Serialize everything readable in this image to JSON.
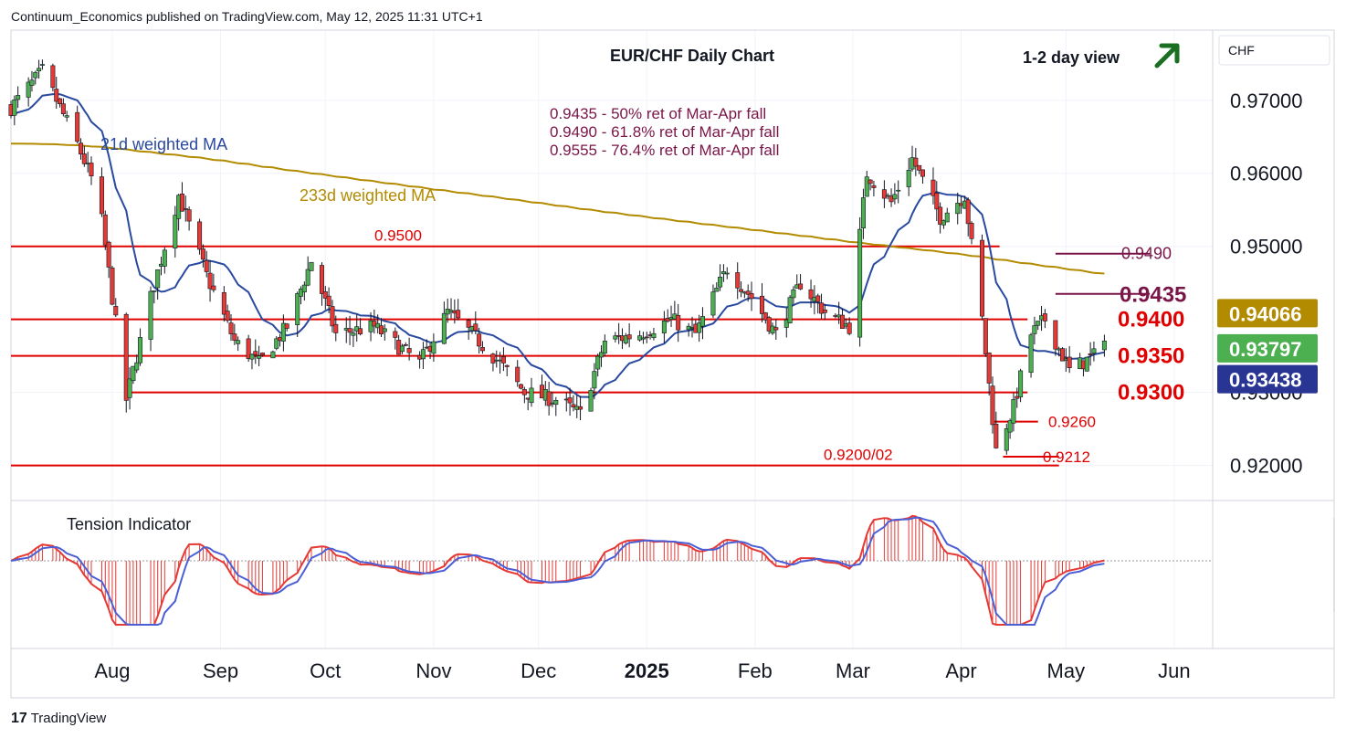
{
  "header": {
    "publisher_line": "Continuum_Economics published on TradingView.com, May 12, 2025 11:31 UTC+1",
    "currency": "CHF"
  },
  "footer": {
    "brand": "TradingView",
    "logo_glyph": "17"
  },
  "chart_data": {
    "type": "candlestick",
    "title": "EUR/CHF Daily Chart",
    "view_label": "1-2 day view",
    "view_direction": "up",
    "ylim": [
      0.9152,
      0.9796
    ],
    "y_ticks": [
      "0.97000",
      "0.96000",
      "0.95000",
      "0.93000",
      "0.92000"
    ],
    "x_tick_labels": [
      "Aug",
      "Sep",
      "Oct",
      "Nov",
      "Dec",
      "2025",
      "Feb",
      "Mar",
      "Apr",
      "May",
      "Jun"
    ],
    "x_tick_dates": [
      "2024-08-01",
      "2024-09-01",
      "2024-10-01",
      "2024-11-01",
      "2024-12-01",
      "2025-01-01",
      "2025-02-01",
      "2025-03-01",
      "2025-04-01",
      "2025-05-01",
      "2025-06-01"
    ],
    "x_range": [
      "2024-07-03",
      "2025-06-12"
    ],
    "series_names": {
      "ma_short": "21d weighted MA",
      "ma_long": "233d weighted MA"
    },
    "price_anchors": [
      {
        "date": "2024-07-03",
        "close": 0.969
      },
      {
        "date": "2024-07-12",
        "close": 0.974
      },
      {
        "date": "2024-07-22",
        "close": 0.964
      },
      {
        "date": "2024-07-28",
        "close": 0.957
      },
      {
        "date": "2024-08-05",
        "close": 0.929
      },
      {
        "date": "2024-08-12",
        "close": 0.943
      },
      {
        "date": "2024-08-20",
        "close": 0.957
      },
      {
        "date": "2024-08-28",
        "close": 0.946
      },
      {
        "date": "2024-09-05",
        "close": 0.937
      },
      {
        "date": "2024-09-12",
        "close": 0.934
      },
      {
        "date": "2024-09-20",
        "close": 0.939
      },
      {
        "date": "2024-09-27",
        "close": 0.948
      },
      {
        "date": "2024-10-04",
        "close": 0.938
      },
      {
        "date": "2024-10-15",
        "close": 0.939
      },
      {
        "date": "2024-10-28",
        "close": 0.934
      },
      {
        "date": "2024-11-05",
        "close": 0.941
      },
      {
        "date": "2024-11-12",
        "close": 0.938
      },
      {
        "date": "2024-11-20",
        "close": 0.934
      },
      {
        "date": "2024-11-27",
        "close": 0.93
      },
      {
        "date": "2024-12-06",
        "close": 0.929
      },
      {
        "date": "2024-12-13",
        "close": 0.927
      },
      {
        "date": "2024-12-20",
        "close": 0.937
      },
      {
        "date": "2024-12-30",
        "close": 0.938
      },
      {
        "date": "2025-01-08",
        "close": 0.94
      },
      {
        "date": "2025-01-15",
        "close": 0.938
      },
      {
        "date": "2025-01-24",
        "close": 0.947
      },
      {
        "date": "2025-01-31",
        "close": 0.943
      },
      {
        "date": "2025-02-07",
        "close": 0.938
      },
      {
        "date": "2025-02-14",
        "close": 0.945
      },
      {
        "date": "2025-02-21",
        "close": 0.941
      },
      {
        "date": "2025-02-28",
        "close": 0.939
      },
      {
        "date": "2025-03-05",
        "close": 0.96
      },
      {
        "date": "2025-03-12",
        "close": 0.956
      },
      {
        "date": "2025-03-18",
        "close": 0.962
      },
      {
        "date": "2025-03-26",
        "close": 0.954
      },
      {
        "date": "2025-04-02",
        "close": 0.957
      },
      {
        "date": "2025-04-07",
        "close": 0.94
      },
      {
        "date": "2025-04-11",
        "close": 0.922
      },
      {
        "date": "2025-04-16",
        "close": 0.928
      },
      {
        "date": "2025-04-21",
        "close": 0.938
      },
      {
        "date": "2025-04-25",
        "close": 0.94
      },
      {
        "date": "2025-05-02",
        "close": 0.933
      },
      {
        "date": "2025-05-09",
        "close": 0.935
      },
      {
        "date": "2025-05-12",
        "close": 0.938
      }
    ],
    "levels": [
      {
        "price": 0.95,
        "label": "0.9500",
        "start": "2024-07-03",
        "end": "2025-04-12",
        "color": "#e00000"
      },
      {
        "price": 0.94,
        "label": "0.9400",
        "start": "2024-07-03",
        "end": "2025-04-20",
        "color": "#e00000"
      },
      {
        "price": 0.935,
        "label": "0.9350",
        "start": "2024-07-03",
        "end": "2025-04-20",
        "color": "#e00000"
      },
      {
        "price": 0.93,
        "label": "0.9300",
        "start": "2024-08-06",
        "end": "2025-04-20",
        "color": "#e00000"
      },
      {
        "price": 0.926,
        "label": "0.9260",
        "start": "2025-04-10",
        "end": "2025-04-23",
        "color": "#e00000"
      },
      {
        "price": 0.9212,
        "label": "0.9212",
        "start": "2025-04-13",
        "end": "2025-04-29",
        "color": "#e00000"
      },
      {
        "price": 0.92,
        "label": "0.9200/02",
        "start": "2024-07-03",
        "end": "2025-04-29",
        "color": "#e00000"
      },
      {
        "price": 0.949,
        "label": "0.9490",
        "start": "2025-04-28",
        "end": "2025-05-25",
        "color": "#7a1548"
      },
      {
        "price": 0.9435,
        "label": "0.9435",
        "start": "2025-04-28",
        "end": "2025-05-25",
        "color": "#7a1548"
      }
    ],
    "fib_notes": [
      "0.9435 - 50% ret of Mar-Apr fall",
      "0.9490 - 61.8% ret of Mar-Apr fall",
      "0.9555 - 76.4% ret of Mar-Apr fall"
    ],
    "price_tags": [
      {
        "value": "0.94066",
        "color": "#b38b00",
        "text_color": "#ffffff"
      },
      {
        "value": "0.93797",
        "color": "#4caf50",
        "text_color": "#ffffff"
      },
      {
        "value": "0.93438",
        "color": "#283593",
        "text_color": "#ffffff"
      }
    ],
    "indicator": {
      "name": "Tension Indicator"
    },
    "colors": {
      "up": "#4caf50",
      "down": "#e53935",
      "wick": "#131722",
      "ma_short": "#2a4aa0",
      "ma_long": "#b38b00",
      "level": "#e00000",
      "fib": "#7a1548",
      "arrow": "#1b6f23",
      "osc_bars": "#e53935",
      "osc_fast": "#e53935",
      "osc_slow": "#4a5fd6"
    }
  }
}
